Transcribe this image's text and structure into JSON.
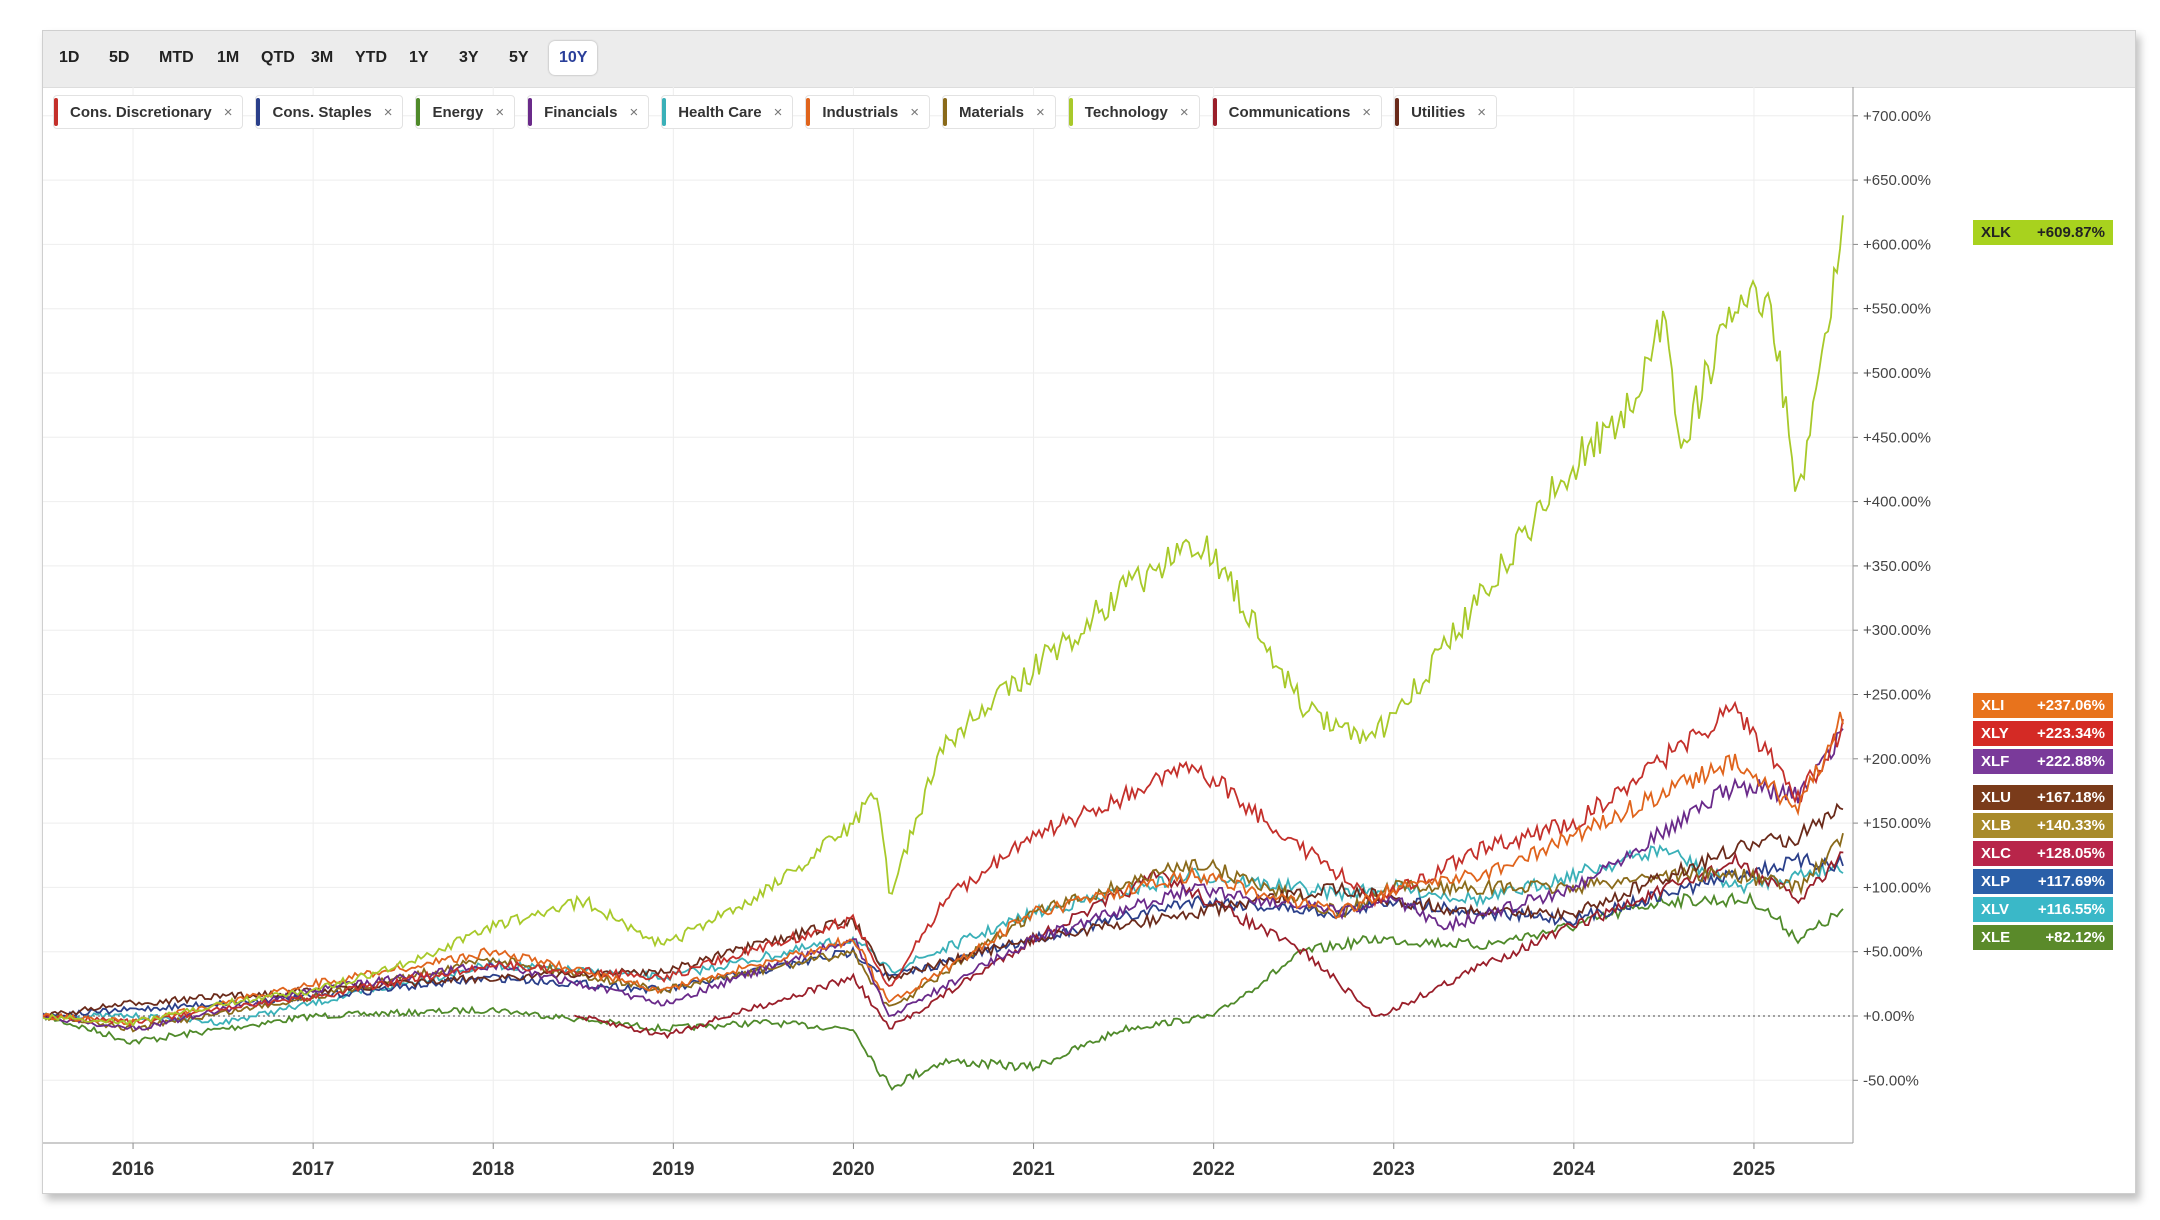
{
  "toolbar": {
    "ranges": [
      "1D",
      "5D",
      "MTD",
      "1M",
      "QTD",
      "3M",
      "YTD",
      "1Y",
      "3Y",
      "5Y",
      "10Y"
    ],
    "active": "10Y"
  },
  "legend": [
    {
      "label": "Cons. Discretionary",
      "color": "#c4302b"
    },
    {
      "label": "Cons. Staples",
      "color": "#2a3f8a"
    },
    {
      "label": "Energy",
      "color": "#4f8a2a"
    },
    {
      "label": "Financials",
      "color": "#6a2a8a"
    },
    {
      "label": "Health Care",
      "color": "#3ab0b8"
    },
    {
      "label": "Industrials",
      "color": "#e0641c"
    },
    {
      "label": "Materials",
      "color": "#8a6a1a"
    },
    {
      "label": "Technology",
      "color": "#a8c92a"
    },
    {
      "label": "Communications",
      "color": "#9a1f2a"
    },
    {
      "label": "Utilities",
      "color": "#6a2a1a"
    }
  ],
  "close_symbol": "×",
  "chart_data": {
    "type": "line",
    "xlim": [
      2015.5,
      2025.55
    ],
    "ylim": [
      -70,
      720
    ],
    "grid": true,
    "baseline": 0,
    "x_ticks": [
      "2016",
      "2017",
      "2018",
      "2019",
      "2020",
      "2021",
      "2022",
      "2023",
      "2024",
      "2025"
    ],
    "y_ticks": [
      "-50.00%",
      "+0.00%",
      "+50.00%",
      "+100.00%",
      "+150.00%",
      "+200.00%",
      "+250.00%",
      "+300.00%",
      "+350.00%",
      "+400.00%",
      "+450.00%",
      "+500.00%",
      "+550.00%",
      "+600.00%",
      "+650.00%",
      "+700.00%"
    ],
    "y_tick_values": [
      -50,
      0,
      50,
      100,
      150,
      200,
      250,
      300,
      350,
      400,
      450,
      500,
      550,
      600,
      650,
      700
    ],
    "series": [
      {
        "ticker": "XLK",
        "label": "+609.87%",
        "color": "#a8c92a",
        "badge": "#a8d21e",
        "points": [
          [
            2015.5,
            0
          ],
          [
            2016,
            -5
          ],
          [
            2016.5,
            10
          ],
          [
            2017,
            20
          ],
          [
            2017.5,
            40
          ],
          [
            2018,
            70
          ],
          [
            2018.5,
            90
          ],
          [
            2018.95,
            55
          ],
          [
            2019.5,
            95
          ],
          [
            2020,
            150
          ],
          [
            2020.13,
            175
          ],
          [
            2020.2,
            95
          ],
          [
            2020.5,
            210
          ],
          [
            2021,
            270
          ],
          [
            2021.5,
            330
          ],
          [
            2021.95,
            370
          ],
          [
            2022.2,
            310
          ],
          [
            2022.5,
            240
          ],
          [
            2022.8,
            215
          ],
          [
            2023,
            230
          ],
          [
            2023.5,
            330
          ],
          [
            2024,
            430
          ],
          [
            2024.3,
            470
          ],
          [
            2024.5,
            540
          ],
          [
            2024.6,
            445
          ],
          [
            2024.9,
            560
          ],
          [
            2025.1,
            545
          ],
          [
            2025.25,
            400
          ],
          [
            2025.4,
            530
          ],
          [
            2025.5,
            610
          ]
        ]
      },
      {
        "ticker": "XLI",
        "label": "+237.06%",
        "color": "#e0641c",
        "badge": "#e8731c",
        "points": [
          [
            2015.5,
            0
          ],
          [
            2016,
            -5
          ],
          [
            2017,
            25
          ],
          [
            2018,
            50
          ],
          [
            2018.95,
            20
          ],
          [
            2020,
            60
          ],
          [
            2020.2,
            10
          ],
          [
            2021,
            80
          ],
          [
            2021.9,
            110
          ],
          [
            2022.7,
            80
          ],
          [
            2023,
            100
          ],
          [
            2023.5,
            110
          ],
          [
            2024,
            140
          ],
          [
            2024.9,
            200
          ],
          [
            2025.25,
            160
          ],
          [
            2025.5,
            237
          ]
        ]
      },
      {
        "ticker": "XLY",
        "label": "+223.34%",
        "color": "#c4302b",
        "badge": "#d42a25",
        "points": [
          [
            2015.5,
            0
          ],
          [
            2016,
            -5
          ],
          [
            2017,
            15
          ],
          [
            2018,
            40
          ],
          [
            2018.95,
            30
          ],
          [
            2020,
            75
          ],
          [
            2020.2,
            20
          ],
          [
            2020.5,
            90
          ],
          [
            2021,
            140
          ],
          [
            2021.9,
            195
          ],
          [
            2022.5,
            130
          ],
          [
            2022.9,
            90
          ],
          [
            2023.5,
            130
          ],
          [
            2024,
            150
          ],
          [
            2024.9,
            240
          ],
          [
            2025.25,
            170
          ],
          [
            2025.5,
            223
          ]
        ]
      },
      {
        "ticker": "XLF",
        "label": "+222.88%",
        "color": "#6a2a8a",
        "badge": "#7a3a9a",
        "points": [
          [
            2015.5,
            0
          ],
          [
            2016,
            -10
          ],
          [
            2017,
            20
          ],
          [
            2018,
            40
          ],
          [
            2018.95,
            10
          ],
          [
            2020,
            60
          ],
          [
            2020.2,
            0
          ],
          [
            2021,
            60
          ],
          [
            2021.9,
            100
          ],
          [
            2022.7,
            80
          ],
          [
            2023,
            90
          ],
          [
            2023.3,
            70
          ],
          [
            2024,
            100
          ],
          [
            2024.9,
            180
          ],
          [
            2025.25,
            170
          ],
          [
            2025.5,
            223
          ]
        ]
      },
      {
        "ticker": "XLU",
        "label": "+167.18%",
        "color": "#6a2a1a",
        "badge": "#7a3b1a",
        "points": [
          [
            2015.5,
            0
          ],
          [
            2016,
            10
          ],
          [
            2017,
            20
          ],
          [
            2018,
            30
          ],
          [
            2018.95,
            35
          ],
          [
            2020,
            75
          ],
          [
            2020.2,
            30
          ],
          [
            2021,
            60
          ],
          [
            2021.9,
            80
          ],
          [
            2022.7,
            100
          ],
          [
            2023,
            90
          ],
          [
            2023.5,
            80
          ],
          [
            2024,
            80
          ],
          [
            2024.9,
            130
          ],
          [
            2025.25,
            140
          ],
          [
            2025.5,
            167
          ]
        ]
      },
      {
        "ticker": "XLB",
        "label": "+140.33%",
        "color": "#8a6a1a",
        "badge": "#a88a2a",
        "points": [
          [
            2015.5,
            0
          ],
          [
            2016,
            -10
          ],
          [
            2017,
            15
          ],
          [
            2018,
            45
          ],
          [
            2018.95,
            20
          ],
          [
            2020,
            50
          ],
          [
            2020.2,
            5
          ],
          [
            2021,
            80
          ],
          [
            2021.9,
            120
          ],
          [
            2022.7,
            80
          ],
          [
            2023,
            100
          ],
          [
            2024,
            100
          ],
          [
            2024.5,
            110
          ],
          [
            2024.9,
            110
          ],
          [
            2025.25,
            100
          ],
          [
            2025.5,
            140
          ]
        ]
      },
      {
        "ticker": "XLC",
        "label": "+128.05%",
        "color": "#9a1f2a",
        "badge": "#b8254a",
        "points": [
          [
            2018.45,
            0
          ],
          [
            2018.95,
            -15
          ],
          [
            2020,
            30
          ],
          [
            2020.2,
            -10
          ],
          [
            2021,
            60
          ],
          [
            2021.7,
            110
          ],
          [
            2022.5,
            50
          ],
          [
            2022.9,
            0
          ],
          [
            2023,
            5
          ],
          [
            2023.5,
            40
          ],
          [
            2024,
            70
          ],
          [
            2024.9,
            120
          ],
          [
            2025.25,
            90
          ],
          [
            2025.5,
            128
          ]
        ]
      },
      {
        "ticker": "XLP",
        "label": "+117.69%",
        "color": "#2a3f8a",
        "badge": "#2a5fa8",
        "points": [
          [
            2015.5,
            0
          ],
          [
            2016,
            5
          ],
          [
            2017,
            15
          ],
          [
            2018,
            30
          ],
          [
            2018.95,
            20
          ],
          [
            2020,
            50
          ],
          [
            2020.2,
            30
          ],
          [
            2021,
            60
          ],
          [
            2021.9,
            90
          ],
          [
            2022.7,
            80
          ],
          [
            2023,
            90
          ],
          [
            2023.5,
            80
          ],
          [
            2024,
            75
          ],
          [
            2024.9,
            110
          ],
          [
            2025.25,
            120
          ],
          [
            2025.5,
            118
          ]
        ]
      },
      {
        "ticker": "XLV",
        "label": "+116.55%",
        "color": "#3ab0b8",
        "badge": "#3ab8c8",
        "points": [
          [
            2015.5,
            0
          ],
          [
            2016,
            0
          ],
          [
            2016.5,
            -5
          ],
          [
            2017,
            10
          ],
          [
            2018,
            40
          ],
          [
            2018.95,
            30
          ],
          [
            2020,
            60
          ],
          [
            2020.2,
            35
          ],
          [
            2021,
            80
          ],
          [
            2021.9,
            110
          ],
          [
            2022.7,
            95
          ],
          [
            2023,
            100
          ],
          [
            2023.5,
            90
          ],
          [
            2024,
            110
          ],
          [
            2024.5,
            130
          ],
          [
            2024.9,
            100
          ],
          [
            2025.25,
            110
          ],
          [
            2025.5,
            117
          ]
        ]
      },
      {
        "ticker": "XLE",
        "label": "+82.12%",
        "color": "#4f8a2a",
        "badge": "#5a8a2a",
        "points": [
          [
            2015.5,
            0
          ],
          [
            2016,
            -20
          ],
          [
            2017,
            0
          ],
          [
            2018,
            5
          ],
          [
            2018.95,
            -10
          ],
          [
            2019.5,
            -5
          ],
          [
            2020,
            -10
          ],
          [
            2020.2,
            -55
          ],
          [
            2020.5,
            -35
          ],
          [
            2021,
            -40
          ],
          [
            2021.5,
            -10
          ],
          [
            2022,
            0
          ],
          [
            2022.5,
            50
          ],
          [
            2022.9,
            60
          ],
          [
            2023.5,
            55
          ],
          [
            2024,
            70
          ],
          [
            2024.5,
            90
          ],
          [
            2025,
            90
          ],
          [
            2025.25,
            60
          ],
          [
            2025.5,
            82
          ]
        ]
      }
    ]
  }
}
